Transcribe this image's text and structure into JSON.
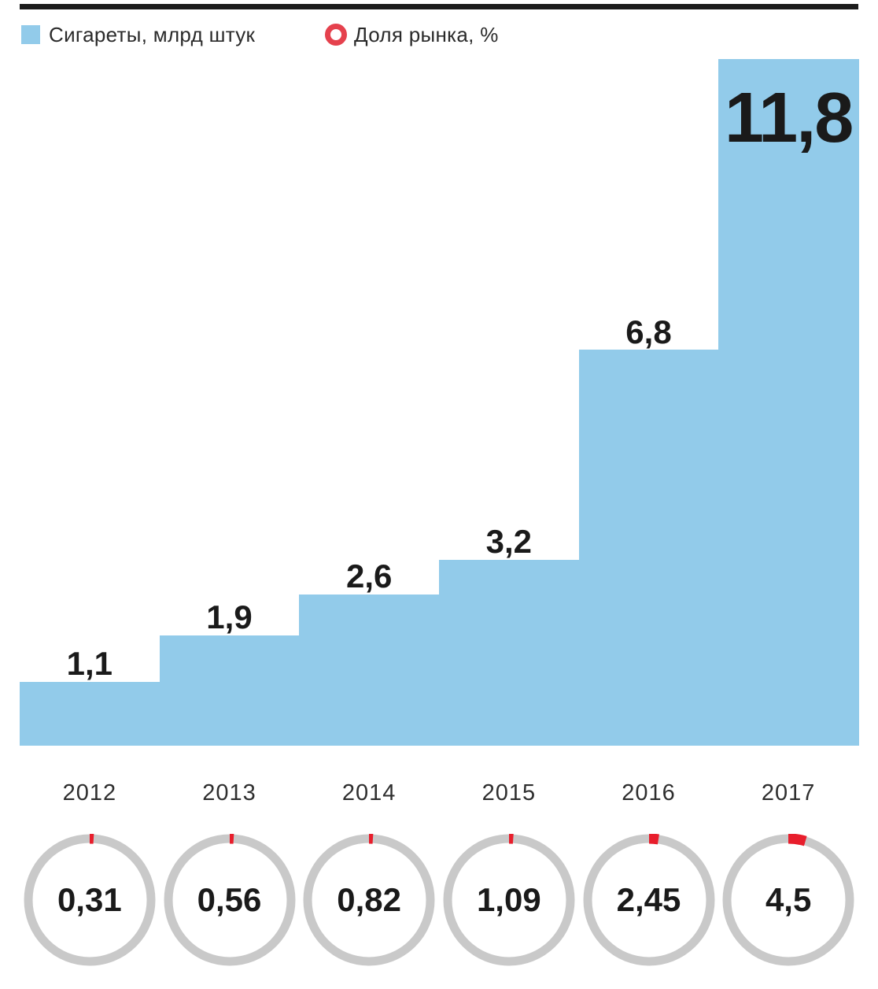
{
  "legend": {
    "bars": {
      "label": "Сигареты, млрд штук",
      "color": "#92cbea"
    },
    "rings": {
      "label": "Доля рынка, %",
      "color": "#e5414d"
    }
  },
  "chart_data": {
    "type": "bar",
    "categories": [
      "2012",
      "2013",
      "2014",
      "2015",
      "2016",
      "2017"
    ],
    "series": [
      {
        "name": "Сигареты, млрд штук",
        "type": "step-bar",
        "values": [
          1.1,
          1.9,
          2.6,
          3.2,
          6.8,
          11.8
        ],
        "labels": [
          "1,1",
          "1,9",
          "2,6",
          "3,2",
          "6,8",
          "11,8"
        ]
      },
      {
        "name": "Доля рынка, %",
        "type": "donut-tick",
        "values": [
          0.31,
          0.56,
          0.82,
          1.09,
          2.45,
          4.5
        ],
        "labels": [
          "0,31",
          "0,56",
          "0,82",
          "1,09",
          "2,45",
          "4,5"
        ]
      }
    ],
    "ylim": [
      0,
      11.8
    ],
    "grid": false,
    "legend_position": "top-left",
    "notes": "Bars drawn contiguous like a staircase; largest value label sits inside its bar; ring charts show a red arc from 12 o'clock clockwise proportional to percent of 100."
  },
  "colors": {
    "bar_blue": "#92cbea",
    "ring_gray": "#c9c9c9",
    "arc_red": "#e81e2c",
    "legend_ring_red": "#e5414d",
    "rule_black": "#1c1c1c",
    "text_black": "#1a1a1a"
  }
}
